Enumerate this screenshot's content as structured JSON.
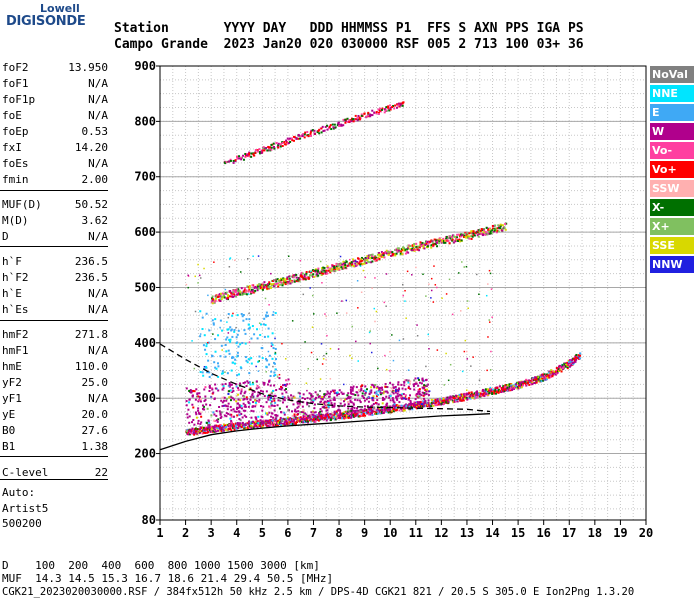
{
  "logo": {
    "line1": "Lowell",
    "line2": "DIGISONDE"
  },
  "header": {
    "row1": "Station       YYYY DAY   DDD HHMMSS P1  FFS S AXN PPS IGA PS",
    "row2": "Campo Grande  2023 Jan20 020 030000 RSF 005 2 713 100 03+ 36"
  },
  "params": [
    {
      "name": "foF2",
      "value": "13.950"
    },
    {
      "name": "foF1",
      "value": "N/A"
    },
    {
      "name": "foF1p",
      "value": "N/A"
    },
    {
      "name": "foE",
      "value": "N/A"
    },
    {
      "name": "foEp",
      "value": "0.53"
    },
    {
      "name": "fxI",
      "value": "14.20"
    },
    {
      "name": "foEs",
      "value": "N/A"
    },
    {
      "name": "fmin",
      "value": "2.00"
    },
    {
      "name": "MUF(D)",
      "value": "50.52"
    },
    {
      "name": "M(D)",
      "value": "3.62"
    },
    {
      "name": "D",
      "value": "N/A"
    },
    {
      "name": "h`F",
      "value": "236.5"
    },
    {
      "name": "h`F2",
      "value": "236.5"
    },
    {
      "name": "h`E",
      "value": "N/A"
    },
    {
      "name": "h`Es",
      "value": "N/A"
    },
    {
      "name": "hmF2",
      "value": "271.8"
    },
    {
      "name": "hmF1",
      "value": "N/A"
    },
    {
      "name": "hmE",
      "value": "110.0"
    },
    {
      "name": "yF2",
      "value": "25.0"
    },
    {
      "name": "yF1",
      "value": "N/A"
    },
    {
      "name": "yE",
      "value": "20.0"
    },
    {
      "name": "B0",
      "value": "27.6"
    },
    {
      "name": "B1",
      "value": "1.38"
    },
    {
      "name": "C-level",
      "value": "22"
    }
  ],
  "auto": {
    "line1": "Auto:",
    "line2": "Artist5",
    "line3": "500200"
  },
  "footer": {
    "d_row": "D    100  200  400  600  800 1000 1500 3000 [km]",
    "muf_row": "MUF  14.3 14.5 15.3 16.7 18.6 21.4 29.4 50.5 [MHz]",
    "file_row": "CGK21_2023020030000.RSF / 384fx512h 50 kHz 2.5 km / DPS-4D CGK21 821 / 20.5 S 305.0 E Ion2Png 1.3.20"
  },
  "legend": [
    {
      "label": "NoVal",
      "color": "#808080"
    },
    {
      "label": "NNE",
      "color": "#00e5ff"
    },
    {
      "label": "E",
      "color": "#3fa9f5"
    },
    {
      "label": "W",
      "color": "#b0008c"
    },
    {
      "label": "Vo-",
      "color": "#ff3fa0"
    },
    {
      "label": "Vo+",
      "color": "#ff0000"
    },
    {
      "label": "SSW",
      "color": "#ffb0b0"
    },
    {
      "label": "X-",
      "color": "#007000"
    },
    {
      "label": "X+",
      "color": "#80c060"
    },
    {
      "label": "SSE",
      "color": "#d8d800"
    },
    {
      "label": "NNW",
      "color": "#2020e0"
    }
  ],
  "chart_data": {
    "type": "scatter",
    "xlabel": "",
    "ylabel": "",
    "xlim": [
      1,
      20
    ],
    "ylim": [
      80,
      900
    ],
    "x_ticks": [
      1,
      2,
      3,
      4,
      5,
      6,
      7,
      8,
      9,
      10,
      11,
      12,
      13,
      14,
      15,
      16,
      17,
      18,
      19,
      20
    ],
    "y_ticks": [
      80,
      200,
      300,
      400,
      500,
      600,
      700,
      800,
      900
    ],
    "grid": true,
    "series": [
      {
        "name": "F2 ordinary trace",
        "points": [
          [
            2.0,
            240
          ],
          [
            3,
            246
          ],
          [
            4,
            251
          ],
          [
            5,
            256
          ],
          [
            6,
            260
          ],
          [
            7,
            265
          ],
          [
            8,
            270
          ],
          [
            9,
            276
          ],
          [
            10,
            282
          ],
          [
            11,
            289
          ],
          [
            12,
            296
          ],
          [
            13,
            305
          ],
          [
            14,
            315
          ],
          [
            15,
            325
          ],
          [
            16,
            340
          ],
          [
            16.5,
            352
          ],
          [
            17,
            365
          ],
          [
            17.4,
            380
          ]
        ]
      },
      {
        "name": "second hop trace",
        "points": [
          [
            3,
            480
          ],
          [
            4,
            492
          ],
          [
            5,
            504
          ],
          [
            6,
            515
          ],
          [
            7,
            527
          ],
          [
            8,
            540
          ],
          [
            9,
            552
          ],
          [
            10,
            563
          ],
          [
            11,
            575
          ],
          [
            12,
            585
          ],
          [
            13,
            595
          ],
          [
            14,
            607
          ],
          [
            14.5,
            612
          ]
        ]
      },
      {
        "name": "third hop trace",
        "points": [
          [
            3.5,
            725
          ],
          [
            4.5,
            742
          ],
          [
            5.5,
            758
          ],
          [
            6.5,
            775
          ],
          [
            7.5,
            790
          ],
          [
            8.5,
            805
          ],
          [
            9.5,
            820
          ],
          [
            10.5,
            832
          ]
        ]
      },
      {
        "name": "profile lower",
        "points": [
          [
            1.0,
            207
          ],
          [
            2,
            222
          ],
          [
            3,
            234
          ],
          [
            4,
            241
          ],
          [
            5,
            246
          ],
          [
            6,
            250
          ],
          [
            7,
            253
          ],
          [
            8,
            256
          ],
          [
            9,
            259
          ],
          [
            10,
            262
          ],
          [
            11,
            265
          ],
          [
            12,
            268
          ],
          [
            13,
            270
          ],
          [
            13.9,
            272
          ]
        ]
      },
      {
        "name": "profile upper dashed",
        "points": [
          [
            1.0,
            398
          ],
          [
            2,
            370
          ],
          [
            3,
            345
          ],
          [
            4,
            325
          ],
          [
            5,
            308
          ],
          [
            6,
            297
          ],
          [
            7,
            290
          ],
          [
            8,
            286
          ],
          [
            9,
            284
          ],
          [
            10,
            283
          ],
          [
            11,
            282
          ],
          [
            12,
            281
          ],
          [
            13,
            280
          ],
          [
            13.9,
            276
          ]
        ]
      }
    ]
  }
}
